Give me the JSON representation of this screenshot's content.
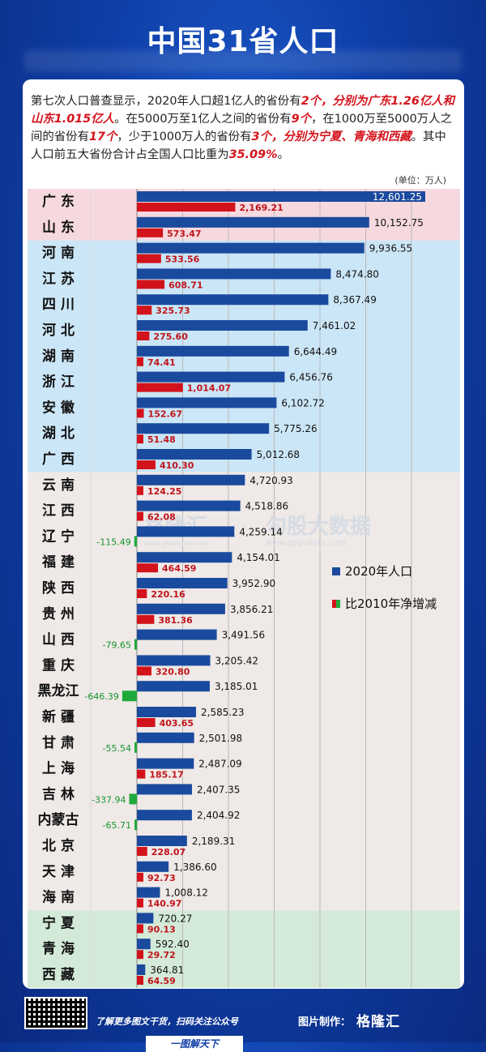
{
  "title": "中国31省人口",
  "intro": {
    "p1": "第七次人口普查显示，2020年人口超1亿人的省份有",
    "h1": "2个，分别为广东1.26亿人和山东1.015亿人",
    "p2": "。在5000万至1亿人之间的省份有",
    "h2": "9个",
    "p3": "，在1000万至5000万人之间的省份有",
    "h3": "17个",
    "p4": "，少于1000万人的省份有",
    "h4": "3个，分别为宁夏、青海和西藏",
    "p5": "。其中人口前五大省份合计占全国人口比重为",
    "h5": "35.09%",
    "p6": "。"
  },
  "unit_label": "(单位：万人)",
  "watermark": {
    "brand": "格隆汇",
    "brand_url": "www.gelonghui.com",
    "partner": "勾股大数据",
    "partner_url": "www.gogudata.com"
  },
  "colors": {
    "pop_bar": "#1a4a9e",
    "increase_bar": "#d3131b",
    "decrease_bar": "#1eaa3a",
    "band_pink": "#f6d9de",
    "band_blue": "#cbe6f6",
    "band_gray": "#efe9e7",
    "band_green": "#d4ead8"
  },
  "chart_data": {
    "type": "bar",
    "orientation": "horizontal",
    "categories": [
      "广 东",
      "山 东",
      "河 南",
      "江 苏",
      "四 川",
      "河 北",
      "湖 南",
      "浙 江",
      "安 徽",
      "湖 北",
      "广 西",
      "云 南",
      "江 西",
      "辽 宁",
      "福 建",
      "陕 西",
      "贵 州",
      "山 西",
      "重 庆",
      "黑龙江",
      "新 疆",
      "甘 肃",
      "上 海",
      "吉 林",
      "内蒙古",
      "北 京",
      "天 津",
      "海 南",
      "宁 夏",
      "青 海",
      "西 藏"
    ],
    "series": [
      {
        "name": "2020年人口",
        "values": [
          12601.25,
          10152.75,
          9936.55,
          8474.8,
          8367.49,
          7461.02,
          6644.49,
          6456.76,
          6102.72,
          5775.26,
          5012.68,
          4720.93,
          4518.86,
          4259.14,
          4154.01,
          3952.9,
          3856.21,
          3491.56,
          3205.42,
          3185.01,
          2585.23,
          2501.98,
          2487.09,
          2407.35,
          2404.92,
          2189.31,
          1386.6,
          1008.12,
          720.27,
          592.4,
          364.81
        ],
        "labels": [
          "12,601.25",
          "10,152.75",
          "9,936.55",
          "8,474.80",
          "8,367.49",
          "7,461.02",
          "6,644.49",
          "6,456.76",
          "6,102.72",
          "5,775.26",
          "5,012.68",
          "4,720.93",
          "4,518.86",
          "4,259.14",
          "4,154.01",
          "3,952.90",
          "3,856.21",
          "3,491.56",
          "3,205.42",
          "3,185.01",
          "2,585.23",
          "2,501.98",
          "2,487.09",
          "2,407.35",
          "2,404.92",
          "2,189.31",
          "1,386.60",
          "1,008.12",
          "720.27",
          "592.40",
          "364.81"
        ]
      },
      {
        "name": "比2010年净增减",
        "values": [
          2169.21,
          573.47,
          533.56,
          608.71,
          325.73,
          275.6,
          74.41,
          1014.07,
          152.67,
          51.48,
          410.3,
          124.25,
          62.08,
          -115.49,
          464.59,
          220.16,
          381.36,
          -79.65,
          320.8,
          -646.39,
          403.65,
          -55.54,
          185.17,
          -337.94,
          -65.71,
          228.07,
          92.73,
          140.97,
          90.13,
          29.72,
          64.59
        ],
        "labels": [
          "2,169.21",
          "573.47",
          "533.56",
          "608.71",
          "325.73",
          "275.60",
          "74.41",
          "1,014.07",
          "152.67",
          "51.48",
          "410.30",
          "124.25",
          "62.08",
          "-115.49",
          "464.59",
          "220.16",
          "381.36",
          "-79.65",
          "320.80",
          "-646.39",
          "403.65",
          "-55.54",
          "185.17",
          "-337.94",
          "-65.71",
          "228.07",
          "92.73",
          "140.97",
          "90.13",
          "29.72",
          "64.59"
        ]
      }
    ],
    "bands": [
      {
        "from": 0,
        "to": 1,
        "color": "band_pink"
      },
      {
        "from": 2,
        "to": 10,
        "color": "band_blue"
      },
      {
        "from": 11,
        "to": 27,
        "color": "band_gray"
      },
      {
        "from": 28,
        "to": 30,
        "color": "band_green"
      }
    ],
    "grid": true,
    "legend_placement": "right-middle"
  },
  "footer": {
    "note": "了解更多图文干货，扫码关注公众号",
    "credit": "图片制作：",
    "credit_brand": "格隆汇",
    "tag": "一图解天下"
  }
}
